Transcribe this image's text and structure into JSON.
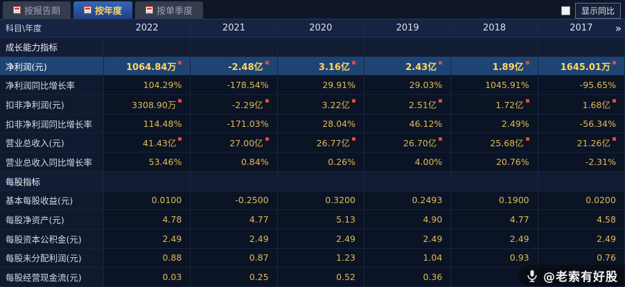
{
  "tabs": [
    {
      "name": "by-report-period",
      "label": "按报告期",
      "active": false
    },
    {
      "name": "by-year",
      "label": "按年度",
      "active": true
    },
    {
      "name": "by-quarter",
      "label": "按单季度",
      "active": false
    }
  ],
  "controls": {
    "compare_label": "显示同比",
    "checkbox_checked": false
  },
  "table": {
    "corner_label": "科目\\年度",
    "more_icon": "»",
    "years": [
      "2022",
      "2021",
      "2020",
      "2019",
      "2018",
      "2017"
    ],
    "rows": [
      {
        "type": "section",
        "label": "成长能力指标",
        "values": [
          "",
          "",
          "",
          "",
          "",
          ""
        ]
      },
      {
        "type": "data",
        "label": "净利润(元)",
        "highlight": true,
        "marker": true,
        "values": [
          "1064.84万",
          "-2.48亿",
          "3.16亿",
          "2.43亿",
          "1.89亿",
          "1645.01万"
        ]
      },
      {
        "type": "data",
        "label": "净利润同比增长率",
        "values": [
          "104.29%",
          "-178.54%",
          "29.91%",
          "29.03%",
          "1045.91%",
          "-95.65%"
        ]
      },
      {
        "type": "data",
        "label": "扣非净利润(元)",
        "marker": true,
        "values": [
          "3308.90万",
          "-2.29亿",
          "3.22亿",
          "2.51亿",
          "1.72亿",
          "1.68亿"
        ]
      },
      {
        "type": "data",
        "label": "扣非净利润同比增长率",
        "values": [
          "114.48%",
          "-171.03%",
          "28.04%",
          "46.12%",
          "2.49%",
          "-56.34%"
        ]
      },
      {
        "type": "data",
        "label": "营业总收入(元)",
        "marker": true,
        "values": [
          "41.43亿",
          "27.00亿",
          "26.77亿",
          "26.70亿",
          "25.68亿",
          "21.26亿"
        ]
      },
      {
        "type": "data",
        "label": "营业总收入同比增长率",
        "values": [
          "53.46%",
          "0.84%",
          "0.26%",
          "4.00%",
          "20.76%",
          "-2.31%"
        ]
      },
      {
        "type": "section",
        "label": "每股指标",
        "values": [
          "",
          "",
          "",
          "",
          "",
          ""
        ]
      },
      {
        "type": "data",
        "label": "基本每股收益(元)",
        "values": [
          "0.0100",
          "-0.2500",
          "0.3200",
          "0.2493",
          "0.1900",
          "0.0200"
        ]
      },
      {
        "type": "data",
        "label": "每股净资产(元)",
        "values": [
          "4.78",
          "4.77",
          "5.13",
          "4.90",
          "4.77",
          "4.58"
        ]
      },
      {
        "type": "data",
        "label": "每股资本公积金(元)",
        "values": [
          "2.49",
          "2.49",
          "2.49",
          "2.49",
          "2.49",
          "2.49"
        ]
      },
      {
        "type": "data",
        "label": "每股未分配利润(元)",
        "values": [
          "0.88",
          "0.87",
          "1.23",
          "1.04",
          "0.93",
          "0.76"
        ]
      },
      {
        "type": "data",
        "label": "每股经营现金流(元)",
        "values": [
          "0.03",
          "0.25",
          "0.52",
          "0.36",
          "",
          ""
        ]
      }
    ]
  },
  "watermark": {
    "text": "@老索有好股"
  }
}
